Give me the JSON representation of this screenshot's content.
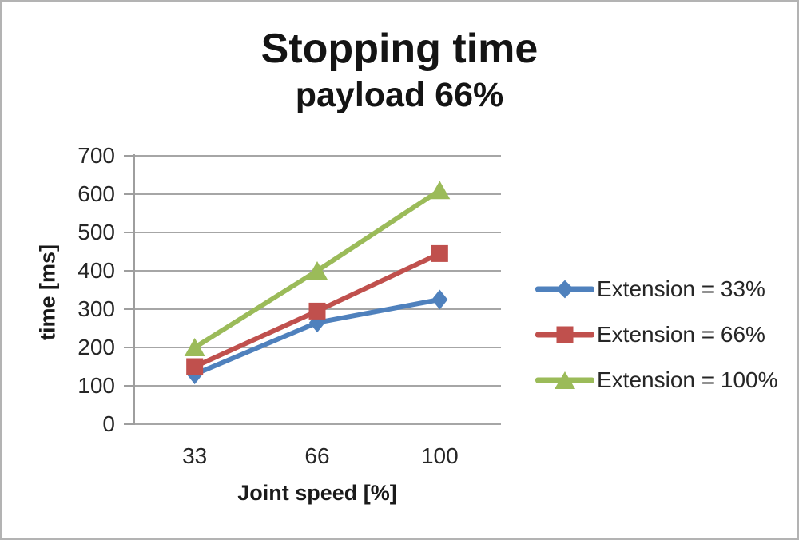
{
  "chart_data": {
    "type": "line",
    "title": "Stopping time",
    "subtitle": "payload 66%",
    "xlabel": "Joint speed [%]",
    "ylabel": "time [ms]",
    "categories": [
      "33",
      "66",
      "100"
    ],
    "ylim": [
      0,
      700
    ],
    "ytick_step": 100,
    "grid": true,
    "legend_position": "right",
    "series": [
      {
        "name": "Extension = 33%",
        "marker": "diamond",
        "color": "#4F81BD",
        "values": [
          130,
          265,
          325
        ]
      },
      {
        "name": "Extension = 66%",
        "marker": "square",
        "color": "#C0504D",
        "values": [
          150,
          295,
          445
        ]
      },
      {
        "name": "Extension = 100%",
        "marker": "triangle",
        "color": "#9BBB59",
        "values": [
          200,
          400,
          610
        ]
      }
    ],
    "colors": {
      "gridline": "#a6a6a6",
      "axis": "#9e9e9e"
    }
  }
}
